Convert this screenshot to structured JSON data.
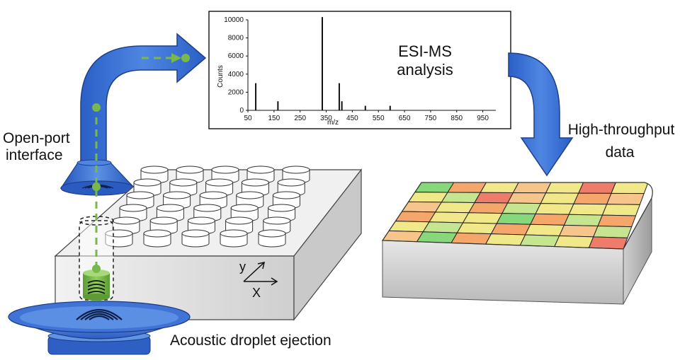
{
  "labels": {
    "open_port_line1": "Open-port",
    "open_port_line2": "interface",
    "ht_line1": "High-throughput",
    "ht_line2": "data",
    "ade": "Acoustic droplet ejection",
    "esi_line1": "ESI-MS",
    "esi_line2": "analysis",
    "axis_y": "y",
    "axis_x": "X"
  },
  "chart_data": {
    "type": "bar",
    "title": "",
    "xlabel": "m/z",
    "ylabel": "Counts",
    "xlim": [
      50,
      1000
    ],
    "ylim": [
      0,
      10000
    ],
    "x_ticks": [
      50,
      150,
      250,
      350,
      450,
      550,
      650,
      750,
      850,
      950
    ],
    "y_ticks": [
      0,
      2000,
      4000,
      6000,
      8000,
      10000
    ],
    "peaks": [
      {
        "x": 80,
        "y": 3000
      },
      {
        "x": 165,
        "y": 1000
      },
      {
        "x": 335,
        "y": 10300
      },
      {
        "x": 400,
        "y": 3000
      },
      {
        "x": 410,
        "y": 1000
      },
      {
        "x": 500,
        "y": 500
      },
      {
        "x": 595,
        "y": 500
      }
    ]
  },
  "heatmap": {
    "rows": 6,
    "cols": 7,
    "colors": {
      "red": "#ef7b6a",
      "orange": "#f4a66b",
      "peach": "#f6c58b",
      "yellow": "#f1e889",
      "lightgreen": "#c6e590",
      "green": "#86d87a"
    },
    "cells": [
      [
        "green",
        "orange",
        "yellow",
        "peach",
        "yellow",
        "red",
        "yellow"
      ],
      [
        "yellow",
        "lightgreen",
        "red",
        "peach",
        "yellow",
        "orange",
        "peach"
      ],
      [
        "peach",
        "yellow",
        "orange",
        "lightgreen",
        "yellow",
        "yellow",
        "yellow"
      ],
      [
        "orange",
        "yellow",
        "yellow",
        "green",
        "orange",
        "lightgreen",
        "orange"
      ],
      [
        "yellow",
        "lightgreen",
        "yellow",
        "orange",
        "yellow",
        "peach",
        "lightgreen"
      ],
      [
        "peach",
        "green",
        "orange",
        "yellow",
        "lightgreen",
        "yellow",
        "red"
      ]
    ]
  },
  "colors": {
    "arrow_blue": "#3d73d4",
    "arrow_dark": "#1f3f88",
    "droplet_green": "#79b84a",
    "plate_gray": "#e3e3e3"
  }
}
